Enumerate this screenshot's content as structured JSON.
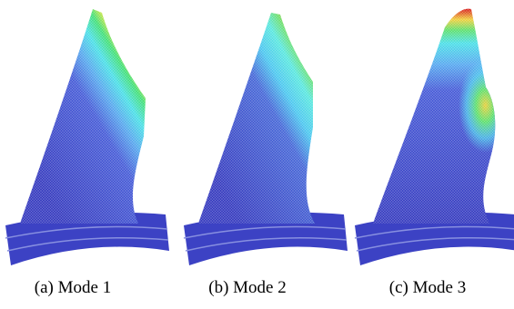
{
  "panels": [
    {
      "caption": "(a) Mode 1"
    },
    {
      "caption": "(b) Mode 2"
    },
    {
      "caption": "(c) Mode 3"
    }
  ]
}
